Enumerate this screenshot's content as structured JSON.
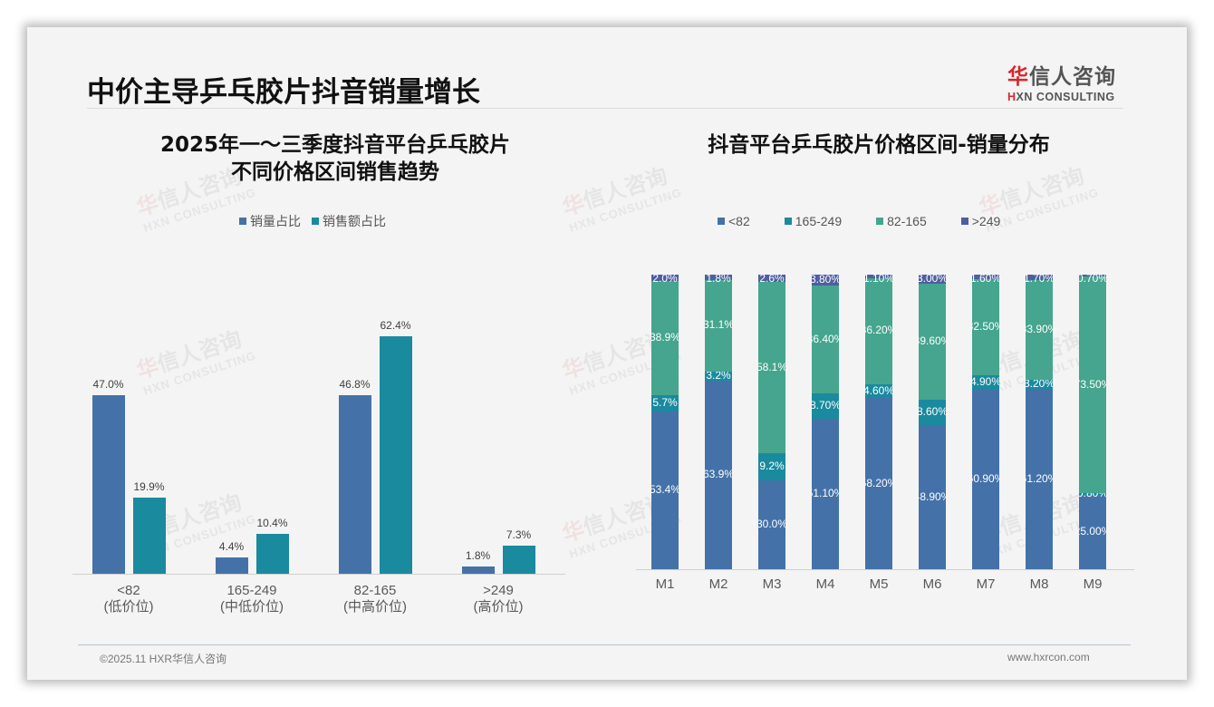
{
  "header": {
    "title": "中价主导乒乓胶片抖音销量增长",
    "logo_cn_red": "华",
    "logo_cn_rest": "信人咨询",
    "logo_en_red": "H",
    "logo_en_rest": "XN CONSULTING"
  },
  "watermark": {
    "cn_red": "华",
    "cn_rest": "信人咨询",
    "en": "HXN CONSULTING"
  },
  "left_chart": {
    "title_line1": "2025年一～三季度抖音平台乒乓胶片",
    "title_line2": "不同价格区间销售趋势",
    "legend": [
      {
        "label": "销量占比",
        "color": "#4472a8"
      },
      {
        "label": "销售额占比",
        "color": "#1a8a9e"
      }
    ]
  },
  "right_chart": {
    "title": "抖音平台乒乓胶片价格区间-销量分布",
    "legend": [
      {
        "label": "<82",
        "color": "#4472a8"
      },
      {
        "label": "165-249",
        "color": "#1a8a9e"
      },
      {
        "label": "82-165",
        "color": "#45a58e"
      },
      {
        "label": ">249",
        "color": "#4e5fa0"
      }
    ]
  },
  "chart_data": [
    {
      "type": "bar",
      "title": "2025年一～三季度抖音平台乒乓胶片不同价格区间销售趋势",
      "categories": [
        "<82",
        "165-249",
        "82-165",
        ">249"
      ],
      "category_sublabels": [
        "(低价位)",
        "(中低价位)",
        "(中高价位)",
        "(高价位)"
      ],
      "series": [
        {
          "name": "销量占比",
          "values": [
            47.0,
            4.4,
            46.8,
            1.8
          ],
          "labels": [
            "47.0%",
            "4.4%",
            "46.8%",
            "1.8%"
          ],
          "color": "#4472a8"
        },
        {
          "name": "销售额占比",
          "values": [
            19.9,
            10.4,
            62.4,
            7.3
          ],
          "labels": [
            "19.9%",
            "10.4%",
            "62.4%",
            "7.3%"
          ],
          "color": "#1a8a9e"
        }
      ],
      "xlabel": "",
      "ylabel": "",
      "ylim": [
        0,
        70
      ],
      "grid": false,
      "legend_position": "top"
    },
    {
      "type": "bar",
      "stacked": true,
      "normalized": true,
      "title": "抖音平台乒乓胶片价格区间-销量分布",
      "categories": [
        "M1",
        "M2",
        "M3",
        "M4",
        "M5",
        "M6",
        "M7",
        "M8",
        "M9"
      ],
      "series": [
        {
          "name": "<82",
          "color": "#4472a8",
          "values": [
            53.4,
            63.9,
            30.0,
            51.1,
            58.2,
            48.9,
            60.9,
            61.2,
            25.0
          ],
          "labels": [
            "53.4%",
            "63.9%",
            "30.0%",
            "51.10%",
            "58.20%",
            "48.90%",
            "60.90%",
            "61.20%",
            "25.00%"
          ]
        },
        {
          "name": "165-249",
          "color": "#1a8a9e",
          "values": [
            5.7,
            3.2,
            9.2,
            8.7,
            4.6,
            8.6,
            4.9,
            3.2,
            0.8
          ],
          "labels": [
            "5.7%",
            "3.2%",
            "9.2%",
            "8.70%",
            "4.60%",
            "8.60%",
            "4.90%",
            "3.20%",
            "0.80%"
          ]
        },
        {
          "name": "82-165",
          "color": "#45a58e",
          "values": [
            38.9,
            31.1,
            58.1,
            36.4,
            36.2,
            39.6,
            32.5,
            33.9,
            73.5
          ],
          "labels": [
            "38.9%",
            "31.1%",
            "58.1%",
            "36.40%",
            "36.20%",
            "39.60%",
            "32.50%",
            "33.90%",
            "73.50%"
          ]
        },
        {
          "name": ">249",
          "color": "#4e5fa0",
          "values": [
            2.0,
            1.8,
            2.6,
            3.8,
            1.1,
            3.0,
            1.6,
            1.7,
            0.7
          ],
          "labels": [
            "2.0%",
            "1.8%",
            "2.6%",
            "3.80%",
            "1.10%",
            "3.00%",
            "1.60%",
            "1.70%",
            "0.70%"
          ]
        }
      ],
      "xlabel": "",
      "ylabel": "",
      "ylim": [
        0,
        100
      ],
      "grid": false,
      "legend_position": "top"
    }
  ],
  "footer": {
    "copyright": "©2025.11 HXR华信人咨询",
    "website": "www.hxrcon.com"
  }
}
